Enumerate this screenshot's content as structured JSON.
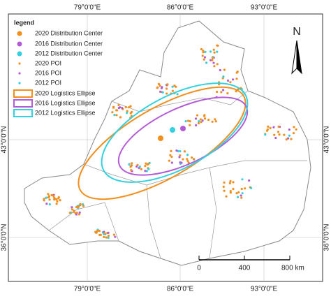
{
  "legend": {
    "title": "legend",
    "items": [
      "2020 Distribution Center",
      "2016 Distribution Center",
      "2012 Distribution Center",
      "2020 POI",
      "2016 POI",
      "2012 POI",
      "2020 Logistics Ellipse",
      "2016 Logistics Ellipse",
      "2012 Logistics Ellipse"
    ]
  },
  "axes": {
    "top": [
      "79°0'0\"E",
      "86°0'0\"E",
      "93°0'0\"E"
    ],
    "bottom": [
      "79°0'0\"E",
      "86°0'0\"E",
      "93°0'0\"E"
    ],
    "left": [
      "43°0'0\"N",
      "36°0'0\"N"
    ],
    "right": [
      "43°0'0\"N",
      "36°0'0\"N"
    ]
  },
  "north": "N",
  "scale": [
    "0",
    "400",
    "800 km"
  ]
}
